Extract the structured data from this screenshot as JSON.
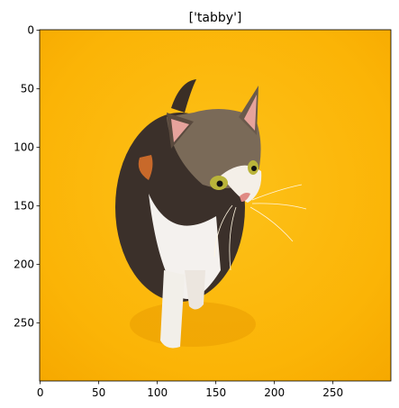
{
  "chart_data": {
    "type": "image",
    "title": "['tabby']",
    "xlim": [
      -0.5,
      299.5
    ],
    "ylim": [
      299.5,
      -0.5
    ],
    "xticks": [
      0,
      50,
      100,
      150,
      200,
      250
    ],
    "yticks": [
      0,
      50,
      100,
      150,
      200,
      250
    ]
  }
}
